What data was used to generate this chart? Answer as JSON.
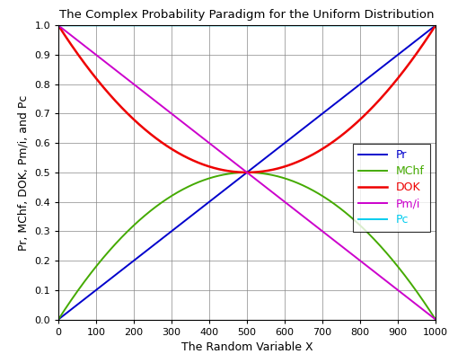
{
  "title": "The Complex Probability Paradigm for the Uniform Distribution",
  "xlabel": "The Random Variable X",
  "ylabel": "Pr, MChf, DOK, Pm/i, and Pc",
  "x_min": 0,
  "x_max": 1000,
  "y_min": 0,
  "y_max": 1.0,
  "x_ticks": [
    0,
    100,
    200,
    300,
    400,
    500,
    600,
    700,
    800,
    900,
    1000
  ],
  "y_ticks": [
    0,
    0.1,
    0.2,
    0.3,
    0.4,
    0.5,
    0.6,
    0.7,
    0.8,
    0.9,
    1.0
  ],
  "color_Pr": "#0000CC",
  "color_MChf": "#44AA00",
  "color_DOK": "#EE0000",
  "color_Pmi": "#CC00CC",
  "color_Pc": "#00CCEE",
  "lw_Pr": 1.4,
  "lw_MChf": 1.4,
  "lw_DOK": 1.8,
  "lw_Pmi": 1.4,
  "lw_Pc": 1.4,
  "legend_labels": [
    "Pr",
    "MChf",
    "DOK",
    "Pm/i",
    "Pc"
  ],
  "figsize": [
    5.0,
    4.04
  ],
  "dpi": 100,
  "title_fontsize": 9.5,
  "label_fontsize": 9,
  "tick_fontsize": 8,
  "legend_fontsize": 9
}
